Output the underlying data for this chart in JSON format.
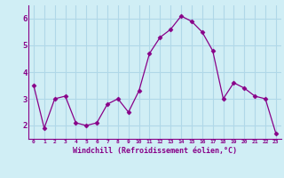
{
  "x": [
    0,
    1,
    2,
    3,
    4,
    5,
    6,
    7,
    8,
    9,
    10,
    11,
    12,
    13,
    14,
    15,
    16,
    17,
    18,
    19,
    20,
    21,
    22,
    23
  ],
  "y": [
    3.5,
    1.9,
    3.0,
    3.1,
    2.1,
    2.0,
    2.1,
    2.8,
    3.0,
    2.5,
    3.3,
    4.7,
    5.3,
    5.6,
    6.1,
    5.9,
    5.5,
    4.8,
    3.0,
    3.6,
    3.4,
    3.1,
    3.0,
    1.7
  ],
  "line_color": "#880088",
  "marker": "D",
  "marker_size": 2.5,
  "bg_color": "#d0eef5",
  "grid_color": "#b0d8e8",
  "xlabel": "Windchill (Refroidissement éolien,°C)",
  "xlabel_color": "#880088",
  "tick_color": "#880088",
  "axis_color": "#880088",
  "ylim": [
    1.5,
    6.5
  ],
  "xlim": [
    -0.5,
    23.5
  ],
  "yticks": [
    2,
    3,
    4,
    5,
    6
  ],
  "xticks": [
    0,
    1,
    2,
    3,
    4,
    5,
    6,
    7,
    8,
    9,
    10,
    11,
    12,
    13,
    14,
    15,
    16,
    17,
    18,
    19,
    20,
    21,
    22,
    23
  ],
  "xtick_labels": [
    "0",
    "1",
    "2",
    "3",
    "4",
    "5",
    "6",
    "7",
    "8",
    "9",
    "10",
    "11",
    "12",
    "13",
    "14",
    "15",
    "16",
    "17",
    "18",
    "19",
    "20",
    "21",
    "22",
    "23"
  ]
}
